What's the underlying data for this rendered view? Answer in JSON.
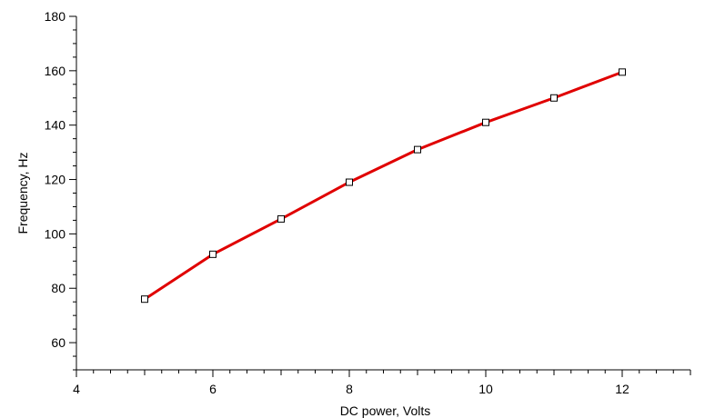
{
  "chart_data": {
    "type": "line",
    "xlabel": "DC power, Volts",
    "ylabel": "Frequency, Hz",
    "xlim": [
      4,
      13
    ],
    "ylim": [
      50,
      180
    ],
    "x_ticks_major": [
      4,
      6,
      8,
      10,
      12
    ],
    "x_tick_labels": [
      "4",
      "6",
      "8",
      "10",
      "12"
    ],
    "y_ticks_major": [
      60,
      80,
      100,
      120,
      140,
      160,
      180
    ],
    "y_tick_labels": [
      "60",
      "80",
      "100",
      "120",
      "140",
      "160",
      "180"
    ],
    "grid": false,
    "series": [
      {
        "color": "#e00000",
        "marker": "square",
        "x": [
          5,
          6,
          7,
          8,
          9,
          10,
          11,
          12
        ],
        "y": [
          76,
          92.5,
          105.5,
          119,
          131,
          141,
          150,
          159.5
        ]
      }
    ]
  }
}
